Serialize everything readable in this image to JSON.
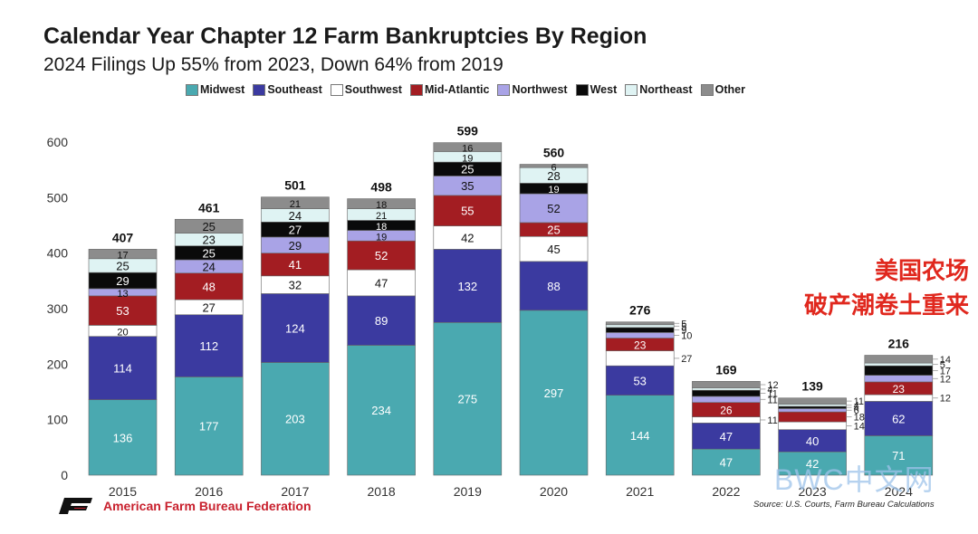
{
  "title": "Calendar Year Chapter 12 Farm Bankruptcies By Region",
  "subtitle": "2024 Filings Up 55% from 2023, Down 64% from 2019",
  "annotation": {
    "line1": "美国农场",
    "line2": "破产潮卷土重来"
  },
  "footer": {
    "org": "American Farm Bureau Federation",
    "source": "Source: U.S. Courts, Farm Bureau Calculations"
  },
  "watermark": "BWC中文网",
  "colors": {
    "Midwest": "#4aa9b0",
    "Southeast": "#3b3aa0",
    "Southwest": "#ffffff",
    "Mid-Atlantic": "#a31d22",
    "Northwest": "#a9a3e6",
    "West": "#0a0a0a",
    "Northeast": "#dff3f3",
    "Other": "#8c8c8c"
  },
  "chart_data": {
    "type": "bar",
    "stacked": true,
    "title": "Calendar Year Chapter 12 Farm Bankruptcies By Region",
    "subtitle": "2024 Filings Up 55% from 2023, Down 64% from 2019",
    "categories": [
      "2015",
      "2016",
      "2017",
      "2018",
      "2019",
      "2020",
      "2021",
      "2022",
      "2023",
      "2024"
    ],
    "series": [
      {
        "name": "Midwest",
        "values": [
          136,
          177,
          203,
          234,
          275,
          297,
          144,
          47,
          42,
          71
        ]
      },
      {
        "name": "Southeast",
        "values": [
          114,
          112,
          124,
          89,
          132,
          88,
          53,
          47,
          40,
          62
        ]
      },
      {
        "name": "Southwest",
        "values": [
          20,
          27,
          32,
          47,
          42,
          45,
          27,
          11,
          14,
          12
        ]
      },
      {
        "name": "Mid-Atlantic",
        "values": [
          53,
          48,
          41,
          52,
          55,
          25,
          23,
          26,
          18,
          23
        ]
      },
      {
        "name": "Northwest",
        "values": [
          13,
          24,
          29,
          19,
          35,
          52,
          10,
          11,
          6,
          12
        ]
      },
      {
        "name": "West",
        "values": [
          29,
          25,
          27,
          18,
          25,
          19,
          9,
          11,
          4,
          17
        ]
      },
      {
        "name": "Northeast",
        "values": [
          25,
          23,
          24,
          21,
          19,
          28,
          5,
          4,
          4,
          5
        ]
      },
      {
        "name": "Other",
        "values": [
          17,
          25,
          21,
          18,
          16,
          6,
          5,
          12,
          11,
          14
        ]
      }
    ],
    "totals": [
      407,
      461,
      501,
      498,
      599,
      560,
      276,
      169,
      139,
      216
    ],
    "ylim": [
      0,
      600
    ],
    "yticks": [
      0,
      100,
      200,
      300,
      400,
      500,
      600
    ],
    "legend": "top"
  }
}
